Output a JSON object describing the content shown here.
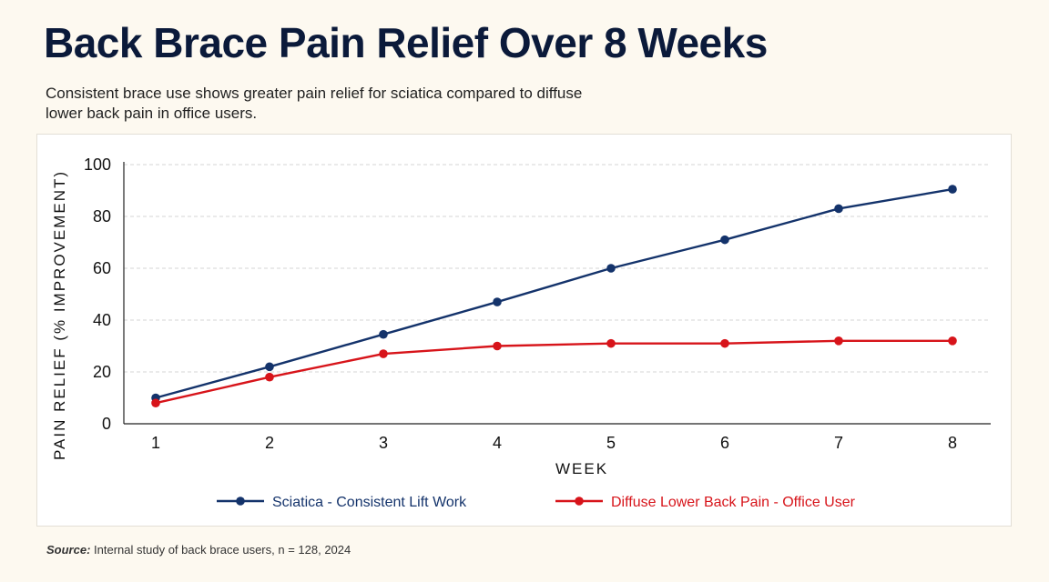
{
  "header": {
    "title": "Back Brace Pain Relief Over 8 Weeks",
    "subtitle": "Consistent brace use shows greater pain relief for sciatica compared to diffuse lower back pain in office users."
  },
  "footer": {
    "source_label": "Source:",
    "source_text": "Internal study of back brace users, n = 128, 2024"
  },
  "chart_data": {
    "type": "line",
    "title": "Back Brace Pain Relief Over 8 Weeks",
    "xlabel": "WEEK",
    "ylabel": "PAIN RELIEF (% IMPROVEMENT)",
    "x": [
      1,
      2,
      3,
      4,
      5,
      6,
      7,
      8
    ],
    "ylim": [
      0,
      100
    ],
    "yticks": [
      0,
      20,
      40,
      60,
      80,
      100
    ],
    "grid": true,
    "legend_position": "bottom",
    "series": [
      {
        "name": "Sciatica - Consistent Lift Work",
        "color": "#14336b",
        "values": [
          10,
          22,
          34.5,
          47,
          60,
          71,
          83,
          90.5
        ]
      },
      {
        "name": "Diffuse Lower Back Pain - Office User",
        "color": "#d7141a",
        "values": [
          8,
          18,
          27,
          30,
          31,
          31,
          32,
          32
        ]
      }
    ]
  }
}
